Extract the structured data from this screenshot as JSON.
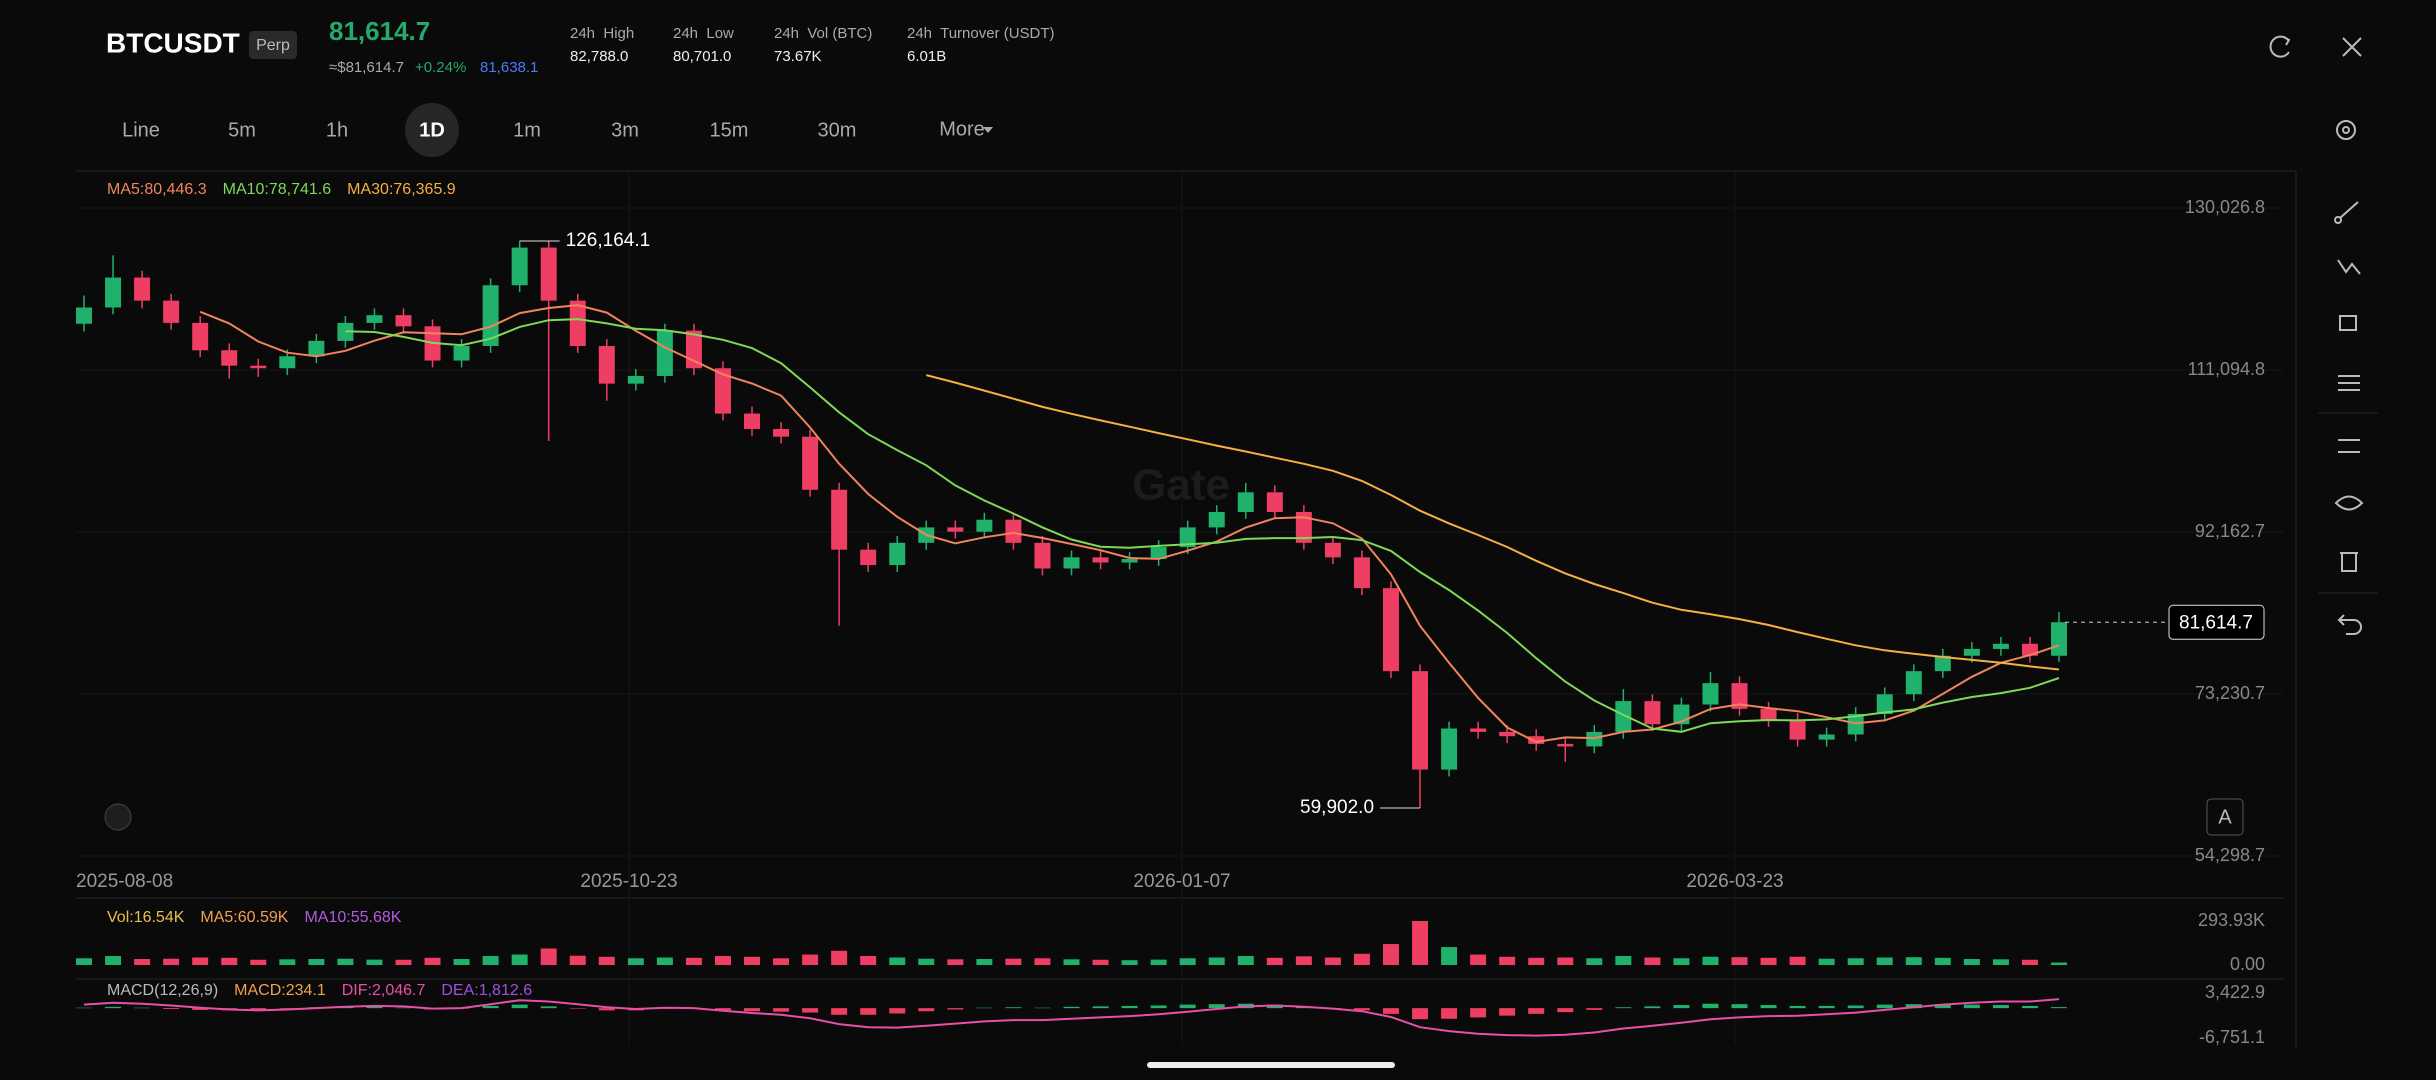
{
  "header": {
    "symbol": "BTCUSDT",
    "badge": "Perp",
    "price": "81,614.7",
    "usd_price": "≈$81,614.7",
    "change": "+0.24%",
    "mark_price": "81,638.1",
    "stats": [
      {
        "label": "24h  High",
        "value": "82,788.0"
      },
      {
        "label": "24h  Low",
        "value": "80,701.0"
      },
      {
        "label": "24h  Vol (BTC)",
        "value": "73.67K"
      },
      {
        "label": "24h  Turnover (USDT)",
        "value": "6.01B"
      }
    ]
  },
  "toolbar": {
    "intervals": [
      "Line",
      "5m",
      "1h",
      "1D",
      "1m",
      "3m",
      "15m",
      "30m"
    ],
    "active": "1D",
    "more": "More"
  },
  "chart_data": [
    {
      "type": "candlestick",
      "up_color": "#20b26c",
      "down_color": "#ef3e63",
      "watermark": "Gate",
      "legend": [
        {
          "text": "MA5:80,446.3",
          "color": "#f0845c"
        },
        {
          "text": "MA10:78,741.6",
          "color": "#7ed957"
        },
        {
          "text": "MA30:76,365.9",
          "color": "#f5b041"
        }
      ],
      "ylim": [
        53247,
        134351
      ],
      "yticks": [
        {
          "value": 130026.8,
          "label": "130,026.8"
        },
        {
          "value": 111094.8,
          "label": "111,094.8"
        },
        {
          "value": 92162.7,
          "label": "92,162.7"
        },
        {
          "value": 73230.7,
          "label": "73,230.7"
        },
        {
          "value": 54298.7,
          "label": "54,298.7"
        }
      ],
      "xticks": [
        "2025-08-08",
        "2025-10-23",
        "2026-01-07",
        "2026-03-23"
      ],
      "annotations": [
        {
          "value": 126164.1,
          "label": "126,164.1"
        },
        {
          "value": 59902,
          "label": "59,902.0"
        }
      ],
      "last_price": {
        "value": 81614.7,
        "label": "81,614.7"
      },
      "candles": [
        [
          116500,
          119800,
          115600,
          118400
        ],
        [
          118400,
          124500,
          117600,
          121900
        ],
        [
          121900,
          122700,
          118300,
          119200
        ],
        [
          119200,
          120000,
          115800,
          116600
        ],
        [
          116600,
          117400,
          112600,
          113400
        ],
        [
          113400,
          114200,
          110100,
          111600
        ],
        [
          111600,
          112400,
          110300,
          111300
        ],
        [
          111300,
          113500,
          110500,
          112700
        ],
        [
          112700,
          115300,
          111900,
          114500
        ],
        [
          114500,
          117400,
          113700,
          116600
        ],
        [
          116600,
          118300,
          115800,
          117500
        ],
        [
          117500,
          118300,
          115400,
          116200
        ],
        [
          116200,
          117000,
          111400,
          112200
        ],
        [
          112200,
          114700,
          111400,
          113900
        ],
        [
          113900,
          121800,
          113100,
          121000
        ],
        [
          121000,
          126164.1,
          120200,
          125400
        ],
        [
          125400,
          126200,
          102800,
          119200
        ],
        [
          119200,
          120000,
          113100,
          113900
        ],
        [
          113900,
          114700,
          107500,
          109500
        ],
        [
          109500,
          111200,
          108700,
          110400
        ],
        [
          110400,
          116500,
          109600,
          115700
        ],
        [
          115700,
          116500,
          110500,
          111300
        ],
        [
          111300,
          112100,
          105200,
          106000
        ],
        [
          106000,
          106800,
          103400,
          104200
        ],
        [
          104200,
          105000,
          102500,
          103300
        ],
        [
          103300,
          104100,
          96300,
          97100
        ],
        [
          97100,
          97900,
          81200,
          90100
        ],
        [
          90100,
          90900,
          87500,
          88300
        ],
        [
          88300,
          91700,
          87500,
          90900
        ],
        [
          90900,
          93500,
          90100,
          92700
        ],
        [
          92700,
          93500,
          91400,
          92200
        ],
        [
          92200,
          94400,
          91400,
          93600
        ],
        [
          93600,
          94400,
          90100,
          90900
        ],
        [
          90900,
          91700,
          87100,
          87900
        ],
        [
          87900,
          90000,
          87100,
          89200
        ],
        [
          89200,
          90000,
          87800,
          88600
        ],
        [
          88600,
          89800,
          87800,
          89000
        ],
        [
          89000,
          91200,
          88200,
          90400
        ],
        [
          90400,
          93500,
          89600,
          92700
        ],
        [
          92700,
          95300,
          91900,
          94500
        ],
        [
          94500,
          97900,
          93700,
          96800
        ],
        [
          96800,
          97600,
          93700,
          94500
        ],
        [
          94500,
          95300,
          90100,
          90900
        ],
        [
          90900,
          91700,
          88400,
          89200
        ],
        [
          89200,
          90000,
          84800,
          85600
        ],
        [
          85600,
          86400,
          75100,
          75900
        ],
        [
          75900,
          76700,
          59902,
          64400
        ],
        [
          64400,
          70000,
          63600,
          69200
        ],
        [
          69200,
          70000,
          68000,
          68800
        ],
        [
          68800,
          69600,
          67500,
          68300
        ],
        [
          68300,
          69100,
          66600,
          67400
        ],
        [
          67400,
          68200,
          65300,
          67100
        ],
        [
          67100,
          69600,
          66300,
          68800
        ],
        [
          68800,
          73800,
          68000,
          72400
        ],
        [
          72400,
          73200,
          68900,
          69700
        ],
        [
          69700,
          72800,
          68900,
          72000
        ],
        [
          72000,
          75800,
          71200,
          74500
        ],
        [
          74500,
          75300,
          70700,
          71500
        ],
        [
          71500,
          72300,
          69400,
          70200
        ],
        [
          70200,
          71000,
          67100,
          67900
        ],
        [
          67900,
          69300,
          67100,
          68500
        ],
        [
          68500,
          71700,
          67700,
          70900
        ],
        [
          70900,
          74000,
          70100,
          73200
        ],
        [
          73200,
          76700,
          72400,
          75900
        ],
        [
          75900,
          78500,
          75100,
          77700
        ],
        [
          77700,
          79300,
          76900,
          78500
        ],
        [
          78500,
          79900,
          77700,
          79100
        ],
        [
          79100,
          79900,
          76900,
          77700
        ],
        [
          77700,
          82788,
          77000,
          81614.7
        ]
      ]
    },
    {
      "type": "volume",
      "legend": [
        {
          "text": "Vol:16.54K",
          "color": "#e8c04a"
        },
        {
          "text": "MA5:60.59K",
          "color": "#f0a050"
        },
        {
          "text": "MA10:55.68K",
          "color": "#b45be0"
        }
      ],
      "ylim": [
        0,
        293930
      ],
      "yticks": [
        {
          "value": 293930,
          "label": "293.93K"
        },
        {
          "value": 0,
          "label": "0.00"
        }
      ],
      "values": [
        45000,
        60000,
        40000,
        42000,
        50000,
        48000,
        35000,
        38000,
        40000,
        42000,
        36000,
        35000,
        48000,
        40000,
        60000,
        70000,
        110000,
        62000,
        55000,
        45000,
        50000,
        48000,
        60000,
        55000,
        45000,
        70000,
        95000,
        60000,
        50000,
        42000,
        38000,
        40000,
        42000,
        45000,
        38000,
        35000,
        32000,
        36000,
        45000,
        50000,
        60000,
        48000,
        58000,
        50000,
        75000,
        140000,
        293930,
        120000,
        70000,
        55000,
        48000,
        50000,
        45000,
        60000,
        50000,
        45000,
        55000,
        52000,
        48000,
        55000,
        42000,
        45000,
        50000,
        52000,
        48000,
        40000,
        38000,
        35000,
        16540
      ]
    },
    {
      "type": "macd",
      "legend": [
        {
          "text": "MACD(12,26,9)",
          "color": "#bbbbbb"
        },
        {
          "text": "MACD:234.1",
          "color": "#f0a050"
        },
        {
          "text": "DIF:2,046.7",
          "color": "#e84fa8"
        },
        {
          "text": "DEA:1,812.6",
          "color": "#a050e0"
        }
      ],
      "ylim": [
        -6751.1,
        3422.9
      ],
      "yticks": [
        {
          "value": 3422.9,
          "label": "3,422.9"
        },
        {
          "value": -6751.1,
          "label": "-6,751.1"
        }
      ],
      "hist": [
        100,
        300,
        100,
        -200,
        -400,
        -500,
        -400,
        -100,
        200,
        300,
        300,
        100,
        -300,
        -100,
        500,
        800,
        400,
        -100,
        -500,
        -500,
        -100,
        -100,
        -500,
        -700,
        -800,
        -1000,
        -1500,
        -1500,
        -1200,
        -700,
        -300,
        100,
        200,
        100,
        300,
        400,
        500,
        600,
        800,
        900,
        1000,
        800,
        300,
        -100,
        -500,
        -1300,
        -2500,
        -2400,
        -2100,
        -1700,
        -1300,
        -900,
        -400,
        200,
        400,
        700,
        1000,
        900,
        700,
        500,
        500,
        600,
        800,
        900,
        900,
        800,
        700,
        500,
        234.1
      ],
      "dif": [
        800,
        1200,
        1000,
        600,
        100,
        -300,
        -500,
        -300,
        0,
        300,
        500,
        400,
        -100,
        0,
        900,
        1800,
        1500,
        900,
        200,
        -200,
        100,
        0,
        -600,
        -1100,
        -1500,
        -2300,
        -3600,
        -4300,
        -4400,
        -4000,
        -3500,
        -3000,
        -2700,
        -2700,
        -2400,
        -2100,
        -1800,
        -1400,
        -800,
        -200,
        400,
        600,
        300,
        -100,
        -700,
        -2000,
        -4300,
        -5200,
        -5800,
        -6100,
        -6200,
        -6000,
        -5500,
        -4600,
        -4000,
        -3300,
        -2500,
        -2100,
        -1800,
        -1700,
        -1400,
        -1000,
        -400,
        200,
        800,
        1200,
        1500,
        1500,
        2046.7
      ]
    }
  ]
}
